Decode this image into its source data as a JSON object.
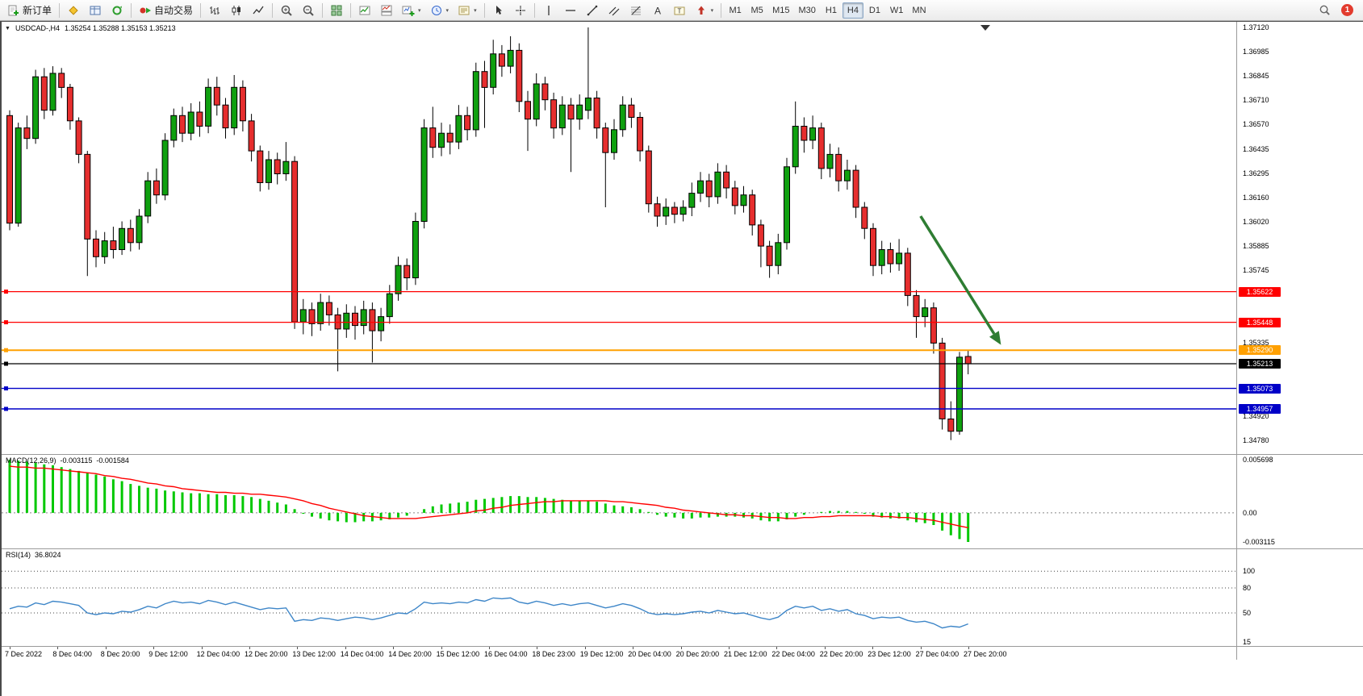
{
  "toolbar": {
    "new_order_label": "新订单",
    "autotrading_label": "自动交易",
    "timeframes": [
      "M1",
      "M5",
      "M15",
      "M30",
      "H1",
      "H4",
      "D1",
      "W1",
      "MN"
    ],
    "active_timeframe": "H4",
    "notification_badge": "1"
  },
  "chart": {
    "symbol_period": "USDCAD-,H4",
    "ohlc": "1.35254 1.35288 1.35153 1.35213"
  },
  "chart_data": [
    {
      "type": "candlestick",
      "symbol": "USDCAD-",
      "timeframe": "H4",
      "y_axis": {
        "max": 1.3712,
        "min": 1.3478,
        "ticks": [
          "1.37120",
          "1.36985",
          "1.36845",
          "1.36710",
          "1.36570",
          "1.36435",
          "1.36295",
          "1.36160",
          "1.36020",
          "1.35885",
          "1.35745",
          "1.35610",
          "1.35470",
          "1.35335",
          "1.35195",
          "1.35060",
          "1.34920",
          "1.34780"
        ]
      },
      "x_labels": [
        "7 Dec 2022",
        "8 Dec 04:00",
        "8 Dec 20:00",
        "9 Dec 12:00",
        "12 Dec 04:00",
        "12 Dec 20:00",
        "13 Dec 12:00",
        "14 Dec 04:00",
        "14 Dec 20:00",
        "15 Dec 12:00",
        "16 Dec 04:00",
        "18 Dec 23:00",
        "19 Dec 12:00",
        "20 Dec 04:00",
        "20 Dec 20:00",
        "21 Dec 12:00",
        "22 Dec 04:00",
        "22 Dec 20:00",
        "23 Dec 12:00",
        "27 Dec 04:00",
        "27 Dec 20:00"
      ],
      "colors": {
        "bull": "#0FA00F",
        "bear": "#E62E2E",
        "wick": "#000000",
        "arrow": "#2E7D32"
      },
      "hlines": [
        {
          "price": 1.35622,
          "label": "1.35622",
          "color": "#FF0000",
          "width": 1.2
        },
        {
          "price": 1.35448,
          "label": "1.35448",
          "color": "#FF0000",
          "width": 1.2
        },
        {
          "price": 1.3529,
          "label": "1.35290",
          "color": "#FFA000",
          "width": 2
        },
        {
          "price": 1.35213,
          "label": "1.35213",
          "color": "#000000",
          "width": 1.2
        },
        {
          "price": 1.35073,
          "label": "1.35073",
          "color": "#0000C8",
          "width": 1.4
        },
        {
          "price": 1.34957,
          "label": "1.34957",
          "color": "#0000C8",
          "width": 1.4
        }
      ],
      "arrow": {
        "from_index": 105.5,
        "from_price": 1.3605,
        "to_index": 114.8,
        "to_price": 1.3532,
        "color": "#2E7D32"
      },
      "candles": [
        [
          1.3662,
          1.3665,
          1.3597,
          1.3601
        ],
        [
          1.3601,
          1.3658,
          1.3599,
          1.3655
        ],
        [
          1.3655,
          1.3662,
          1.3643,
          1.3649
        ],
        [
          1.3649,
          1.3688,
          1.3646,
          1.3684
        ],
        [
          1.3684,
          1.3689,
          1.366,
          1.3665
        ],
        [
          1.3665,
          1.369,
          1.3662,
          1.3686
        ],
        [
          1.3686,
          1.3689,
          1.3672,
          1.3678
        ],
        [
          1.3678,
          1.368,
          1.3654,
          1.3659
        ],
        [
          1.3659,
          1.3661,
          1.3635,
          1.364
        ],
        [
          1.364,
          1.3642,
          1.3571,
          1.3592
        ],
        [
          1.3592,
          1.3597,
          1.3576,
          1.3582
        ],
        [
          1.3582,
          1.3596,
          1.3578,
          1.3591
        ],
        [
          1.3591,
          1.3599,
          1.3581,
          1.3586
        ],
        [
          1.3586,
          1.3602,
          1.3583,
          1.3598
        ],
        [
          1.3598,
          1.3603,
          1.3585,
          1.359
        ],
        [
          1.359,
          1.3609,
          1.3586,
          1.3605
        ],
        [
          1.3605,
          1.363,
          1.3601,
          1.3625
        ],
        [
          1.3625,
          1.3632,
          1.3612,
          1.3617
        ],
        [
          1.3617,
          1.3652,
          1.3614,
          1.3648
        ],
        [
          1.3648,
          1.3666,
          1.3644,
          1.3662
        ],
        [
          1.3662,
          1.3667,
          1.3647,
          1.3652
        ],
        [
          1.3652,
          1.3669,
          1.3648,
          1.3664
        ],
        [
          1.3664,
          1.367,
          1.365,
          1.3656
        ],
        [
          1.3656,
          1.3683,
          1.3652,
          1.3678
        ],
        [
          1.3678,
          1.3684,
          1.3662,
          1.3668
        ],
        [
          1.3668,
          1.3672,
          1.3649,
          1.3655
        ],
        [
          1.3655,
          1.3685,
          1.3651,
          1.3678
        ],
        [
          1.3678,
          1.3682,
          1.3653,
          1.3659
        ],
        [
          1.3659,
          1.3663,
          1.3636,
          1.3642
        ],
        [
          1.3642,
          1.3645,
          1.3619,
          1.3624
        ],
        [
          1.3624,
          1.3642,
          1.362,
          1.3637
        ],
        [
          1.3637,
          1.3641,
          1.3623,
          1.3629
        ],
        [
          1.3629,
          1.3647,
          1.3625,
          1.3636
        ],
        [
          1.3636,
          1.3639,
          1.3541,
          1.3545
        ],
        [
          1.3545,
          1.3558,
          1.3538,
          1.3552
        ],
        [
          1.3552,
          1.3556,
          1.3537,
          1.3544
        ],
        [
          1.3544,
          1.3561,
          1.354,
          1.3556
        ],
        [
          1.3556,
          1.356,
          1.3543,
          1.3549
        ],
        [
          1.3549,
          1.3553,
          1.3517,
          1.3541
        ],
        [
          1.3541,
          1.3555,
          1.3536,
          1.355
        ],
        [
          1.355,
          1.3554,
          1.3535,
          1.3543
        ],
        [
          1.3543,
          1.3557,
          1.3538,
          1.3552
        ],
        [
          1.3552,
          1.3556,
          1.3522,
          1.354
        ],
        [
          1.354,
          1.3553,
          1.3534,
          1.3548
        ],
        [
          1.3548,
          1.3566,
          1.3544,
          1.3561
        ],
        [
          1.3561,
          1.3582,
          1.3557,
          1.3577
        ],
        [
          1.3577,
          1.3581,
          1.3563,
          1.357
        ],
        [
          1.357,
          1.3607,
          1.3566,
          1.3602
        ],
        [
          1.3602,
          1.366,
          1.3598,
          1.3655
        ],
        [
          1.3655,
          1.3667,
          1.3638,
          1.3644
        ],
        [
          1.3644,
          1.3658,
          1.3639,
          1.3652
        ],
        [
          1.3652,
          1.3657,
          1.364,
          1.3647
        ],
        [
          1.3647,
          1.3668,
          1.3643,
          1.3662
        ],
        [
          1.3662,
          1.3667,
          1.3648,
          1.3654
        ],
        [
          1.3654,
          1.3692,
          1.365,
          1.3687
        ],
        [
          1.3687,
          1.3693,
          1.3655,
          1.3678
        ],
        [
          1.3678,
          1.3705,
          1.3674,
          1.3697
        ],
        [
          1.3697,
          1.3702,
          1.3684,
          1.369
        ],
        [
          1.369,
          1.3707,
          1.3686,
          1.3699
        ],
        [
          1.3699,
          1.3703,
          1.3664,
          1.367
        ],
        [
          1.367,
          1.3676,
          1.3642,
          1.366
        ],
        [
          1.366,
          1.3686,
          1.3656,
          1.368
        ],
        [
          1.368,
          1.3684,
          1.3665,
          1.3671
        ],
        [
          1.3671,
          1.3675,
          1.3649,
          1.3655
        ],
        [
          1.3655,
          1.3673,
          1.3651,
          1.3668
        ],
        [
          1.3668,
          1.3672,
          1.363,
          1.366
        ],
        [
          1.366,
          1.3674,
          1.3654,
          1.3668
        ],
        [
          1.3665,
          1.3712,
          1.366,
          1.3672
        ],
        [
          1.3672,
          1.3676,
          1.3649,
          1.3655
        ],
        [
          1.3655,
          1.3658,
          1.361,
          1.3641
        ],
        [
          1.3641,
          1.366,
          1.3637,
          1.3654
        ],
        [
          1.3654,
          1.3673,
          1.365,
          1.3668
        ],
        [
          1.3668,
          1.3672,
          1.3655,
          1.3661
        ],
        [
          1.3661,
          1.3664,
          1.3636,
          1.3642
        ],
        [
          1.3642,
          1.3645,
          1.3607,
          1.3612
        ],
        [
          1.3612,
          1.3616,
          1.3599,
          1.3605
        ],
        [
          1.3605,
          1.3615,
          1.36,
          1.361
        ],
        [
          1.361,
          1.3613,
          1.3601,
          1.3606
        ],
        [
          1.3606,
          1.3614,
          1.3602,
          1.361
        ],
        [
          1.361,
          1.3624,
          1.3605,
          1.3618
        ],
        [
          1.3618,
          1.363,
          1.3613,
          1.3625
        ],
        [
          1.3625,
          1.3629,
          1.361,
          1.3616
        ],
        [
          1.3616,
          1.3635,
          1.3612,
          1.363
        ],
        [
          1.363,
          1.3634,
          1.3615,
          1.3621
        ],
        [
          1.3621,
          1.3625,
          1.3606,
          1.3611
        ],
        [
          1.3611,
          1.3622,
          1.3607,
          1.3617
        ],
        [
          1.3617,
          1.362,
          1.3594,
          1.36
        ],
        [
          1.36,
          1.3603,
          1.3576,
          1.3588
        ],
        [
          1.3588,
          1.3591,
          1.357,
          1.3577
        ],
        [
          1.3577,
          1.3595,
          1.3572,
          1.359
        ],
        [
          1.359,
          1.3638,
          1.3586,
          1.3633
        ],
        [
          1.3633,
          1.367,
          1.3629,
          1.3656
        ],
        [
          1.3656,
          1.3661,
          1.3641,
          1.3648
        ],
        [
          1.3648,
          1.3662,
          1.3643,
          1.3655
        ],
        [
          1.3655,
          1.3658,
          1.3626,
          1.3632
        ],
        [
          1.3632,
          1.3646,
          1.3627,
          1.364
        ],
        [
          1.364,
          1.3644,
          1.3619,
          1.3625
        ],
        [
          1.3625,
          1.3637,
          1.362,
          1.3631
        ],
        [
          1.3631,
          1.3634,
          1.3604,
          1.361
        ],
        [
          1.361,
          1.3613,
          1.3592,
          1.3598
        ],
        [
          1.3598,
          1.3601,
          1.3571,
          1.3577
        ],
        [
          1.3577,
          1.3591,
          1.3572,
          1.3586
        ],
        [
          1.3586,
          1.359,
          1.3573,
          1.3578
        ],
        [
          1.3578,
          1.3592,
          1.3574,
          1.3584
        ],
        [
          1.3584,
          1.3587,
          1.3554,
          1.356
        ],
        [
          1.356,
          1.3563,
          1.3536,
          1.3548
        ],
        [
          1.3548,
          1.3558,
          1.3542,
          1.3553
        ],
        [
          1.3553,
          1.3556,
          1.3527,
          1.3533
        ],
        [
          1.3533,
          1.3536,
          1.3484,
          1.349
        ],
        [
          1.349,
          1.35,
          1.3478,
          1.3483
        ],
        [
          1.3483,
          1.3528,
          1.3481,
          1.3525
        ],
        [
          1.35254,
          1.35288,
          1.35153,
          1.35213
        ]
      ]
    },
    {
      "type": "bar",
      "name": "MACD(12,26,9)",
      "main_value": "-0.003115",
      "signal_value": "-0.001584",
      "scale": [
        "0.005698",
        "0.00",
        "-0.003115"
      ],
      "scale_values": [
        0.005698,
        0,
        -0.003115
      ],
      "colors": {
        "histogram": "#00C800",
        "signal": "#FF0000"
      },
      "histogram": [
        0.0057,
        0.0056,
        0.0055,
        0.0054,
        0.0052,
        0.0051,
        0.0049,
        0.0047,
        0.0045,
        0.0043,
        0.0041,
        0.0039,
        0.0036,
        0.0034,
        0.0031,
        0.0029,
        0.0027,
        0.0026,
        0.0024,
        0.0023,
        0.0022,
        0.0021,
        0.0021,
        0.002,
        0.002,
        0.0019,
        0.0019,
        0.0018,
        0.0017,
        0.0015,
        0.0013,
        0.0011,
        0.0009,
        0.0004,
        -0.0001,
        -0.0004,
        -0.0006,
        -0.0008,
        -0.0009,
        -0.001,
        -0.001,
        -0.0009,
        -0.0009,
        -0.0008,
        -0.0007,
        -0.0005,
        -0.0003,
        0.0,
        0.0004,
        0.0007,
        0.0009,
        0.001,
        0.0011,
        0.0012,
        0.0014,
        0.0015,
        0.0016,
        0.0017,
        0.0018,
        0.0018,
        0.0017,
        0.0017,
        0.0016,
        0.0015,
        0.0014,
        0.0013,
        0.0013,
        0.0013,
        0.0012,
        0.001,
        0.0008,
        0.0007,
        0.0006,
        0.0004,
        0.0001,
        -0.0002,
        -0.0004,
        -0.0005,
        -0.0006,
        -0.0006,
        -0.0005,
        -0.0005,
        -0.0004,
        -0.0004,
        -0.0004,
        -0.0005,
        -0.0006,
        -0.0008,
        -0.0009,
        -0.0009,
        -0.0007,
        -0.0004,
        -0.0002,
        0.0,
        0.0001,
        0.0002,
        0.0002,
        0.0002,
        0.0001,
        -0.0001,
        -0.0004,
        -0.0005,
        -0.0006,
        -0.0006,
        -0.0008,
        -0.001,
        -0.0011,
        -0.0013,
        -0.0019,
        -0.0024,
        -0.0028,
        -0.003115
      ],
      "signal": [
        0.005,
        0.0049,
        0.0049,
        0.0048,
        0.0048,
        0.0047,
        0.0046,
        0.0045,
        0.0044,
        0.0043,
        0.0042,
        0.004,
        0.0039,
        0.0037,
        0.0036,
        0.0034,
        0.0032,
        0.0031,
        0.0029,
        0.0028,
        0.0026,
        0.0025,
        0.0024,
        0.0023,
        0.0022,
        0.0022,
        0.0021,
        0.0021,
        0.002,
        0.002,
        0.0019,
        0.0018,
        0.0017,
        0.0015,
        0.0013,
        0.001,
        0.0008,
        0.0005,
        0.0003,
        0.0001,
        -0.0001,
        -0.0003,
        -0.0004,
        -0.0005,
        -0.0006,
        -0.0006,
        -0.0006,
        -0.0006,
        -0.0005,
        -0.0004,
        -0.0003,
        -0.0002,
        -0.0001,
        0.0,
        0.0002,
        0.0003,
        0.0005,
        0.0006,
        0.0008,
        0.0009,
        0.001,
        0.0011,
        0.0012,
        0.0012,
        0.0013,
        0.0013,
        0.0013,
        0.0013,
        0.0013,
        0.0013,
        0.0012,
        0.0012,
        0.0011,
        0.001,
        0.0009,
        0.0008,
        0.0006,
        0.0005,
        0.0003,
        0.0002,
        0.0001,
        0.0,
        -0.0001,
        -0.0002,
        -0.0002,
        -0.0003,
        -0.0003,
        -0.0004,
        -0.0005,
        -0.0005,
        -0.0006,
        -0.0006,
        -0.0005,
        -0.0005,
        -0.0004,
        -0.0004,
        -0.0003,
        -0.0003,
        -0.0003,
        -0.0003,
        -0.0003,
        -0.0004,
        -0.0004,
        -0.0005,
        -0.0005,
        -0.0006,
        -0.0007,
        -0.0008,
        -0.001,
        -0.0012,
        -0.0014,
        -0.001584
      ]
    },
    {
      "type": "line",
      "name": "RSI(14)",
      "value_display": "36.8024",
      "scale": [
        "100",
        "80",
        "50",
        "15"
      ],
      "scale_values": [
        100,
        80,
        50,
        15
      ],
      "levels": [
        100,
        80,
        50
      ],
      "color": "#3E86C8",
      "values": [
        55,
        58,
        57,
        62,
        60,
        64,
        63,
        61,
        59,
        50,
        48,
        50,
        49,
        52,
        51,
        54,
        58,
        56,
        61,
        64,
        62,
        63,
        61,
        65,
        63,
        60,
        63,
        60,
        57,
        54,
        56,
        55,
        56,
        40,
        42,
        41,
        44,
        43,
        41,
        43,
        45,
        44,
        42,
        44,
        47,
        50,
        49,
        55,
        63,
        61,
        62,
        61,
        63,
        62,
        66,
        64,
        68,
        67,
        68,
        63,
        61,
        64,
        62,
        59,
        61,
        59,
        61,
        62,
        59,
        56,
        58,
        61,
        59,
        55,
        50,
        48,
        49,
        48,
        49,
        51,
        52,
        50,
        53,
        51,
        49,
        50,
        47,
        44,
        42,
        45,
        53,
        58,
        56,
        58,
        53,
        55,
        52,
        54,
        49,
        47,
        43,
        45,
        44,
        45,
        41,
        39,
        40,
        37,
        32,
        34,
        33,
        36.8024
      ]
    }
  ]
}
